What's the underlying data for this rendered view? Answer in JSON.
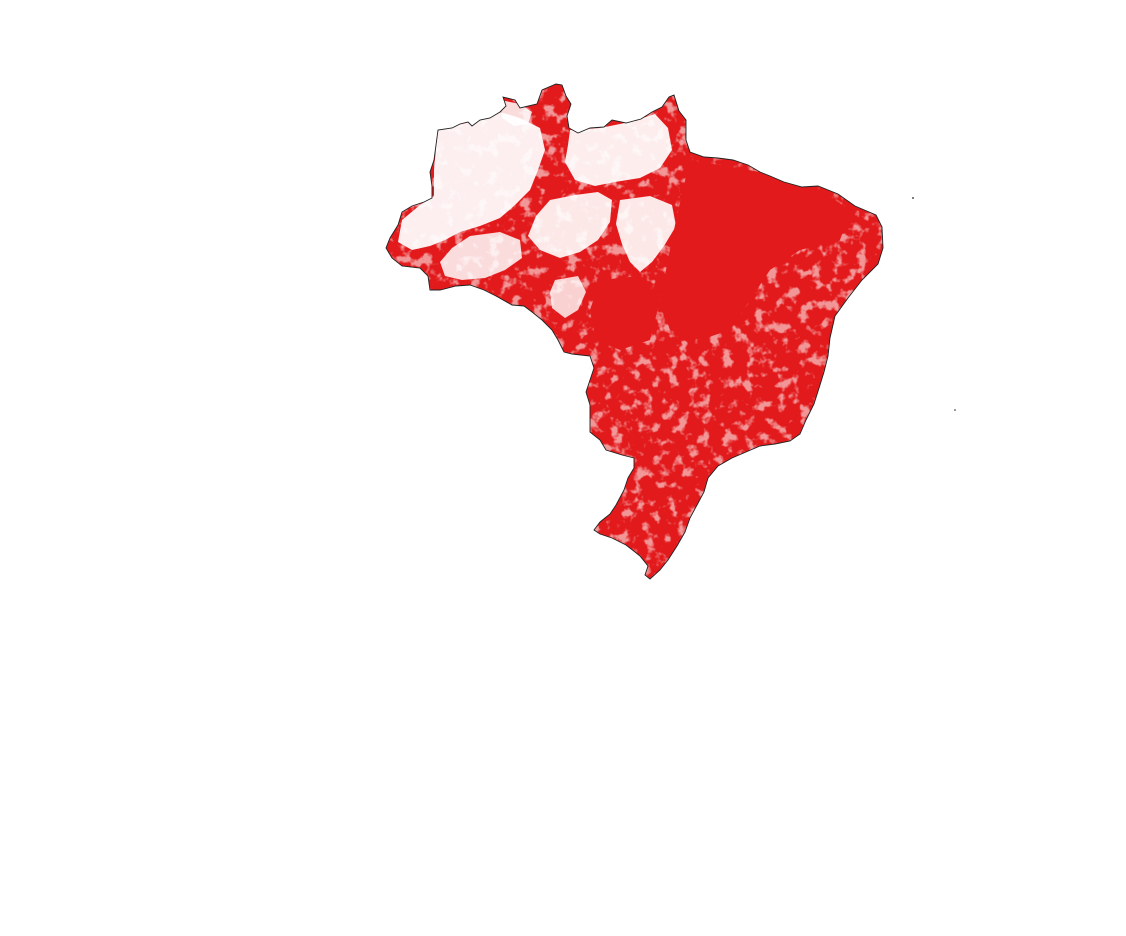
{
  "map": {
    "subject": "Brazil",
    "fill_color": "#e31a1c",
    "background_color": "#ffffff",
    "outline_color": "#222222"
  }
}
